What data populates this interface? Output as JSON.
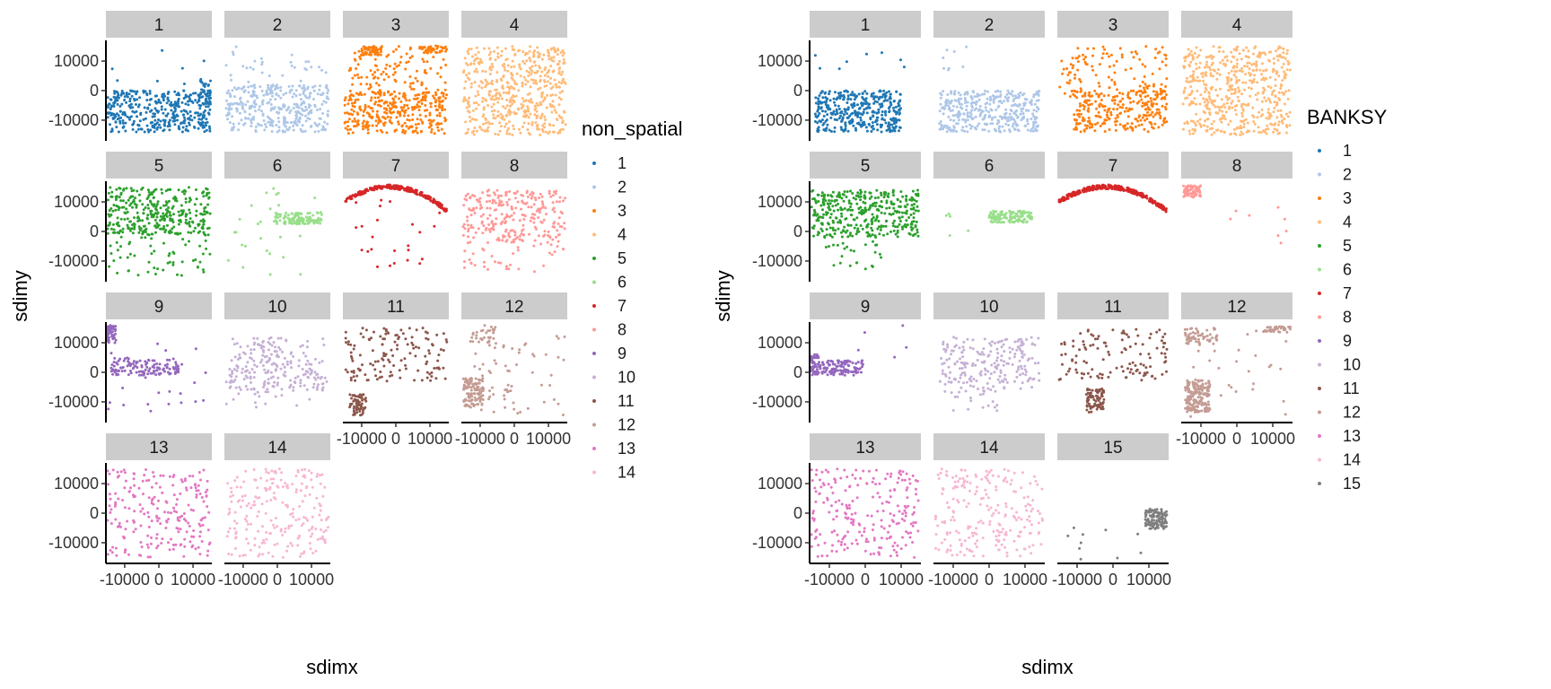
{
  "chart_data": [
    {
      "type": "scatter",
      "facet_by": "non_spatial",
      "xlabel": "sdimx",
      "ylabel": "sdimy",
      "xlim": [
        -15500,
        15500
      ],
      "ylim": [
        -17000,
        17000
      ],
      "x_ticks": [
        -10000,
        0,
        10000
      ],
      "x_tick_labels": [
        "-10000",
        "0",
        "10000"
      ],
      "y_ticks": [
        -10000,
        0,
        10000
      ],
      "y_tick_labels": [
        "-10000",
        "0",
        "10000"
      ],
      "grid": false,
      "legend": {
        "title": "non_spatial",
        "position": "right",
        "entries": [
          "1",
          "2",
          "3",
          "4",
          "5",
          "6",
          "7",
          "8",
          "9",
          "10",
          "11",
          "12",
          "13",
          "14"
        ]
      },
      "panels": [
        {
          "label": "1",
          "color": "#1f77b4",
          "clusters": [
            {
              "cx": 0,
              "cy": -7000,
              "sx": 15000,
              "sy": 7000,
              "n": 380,
              "kind": "uniform"
            },
            {
              "cx": 13500,
              "cy": -1000,
              "sx": 2000,
              "sy": 5000,
              "n": 40,
              "kind": "uniform"
            },
            {
              "cx": 0,
              "cy": 4000,
              "sx": 14000,
              "sy": 10000,
              "n": 12,
              "kind": "uniform"
            }
          ]
        },
        {
          "label": "2",
          "color": "#aec7e8",
          "clusters": [
            {
              "cx": 0,
              "cy": -6000,
              "sx": 15000,
              "sy": 8000,
              "n": 340,
              "kind": "uniform"
            },
            {
              "cx": 0,
              "cy": 7000,
              "sx": 15000,
              "sy": 8000,
              "n": 40,
              "kind": "uniform"
            }
          ]
        },
        {
          "label": "3",
          "color": "#ff7f0e",
          "clusters": [
            {
              "cx": 0,
              "cy": -7500,
              "sx": 15000,
              "sy": 7000,
              "n": 300,
              "kind": "uniform"
            },
            {
              "cx": 0,
              "cy": 4000,
              "sx": 15000,
              "sy": 11000,
              "n": 160,
              "kind": "uniform"
            },
            {
              "cx": -7000,
              "cy": 13500,
              "sx": 3000,
              "sy": 1500,
              "n": 50,
              "kind": "uniform"
            },
            {
              "cx": 11000,
              "cy": 14000,
              "sx": 4000,
              "sy": 1200,
              "n": 40,
              "kind": "uniform"
            }
          ]
        },
        {
          "label": "4",
          "color": "#ffbb78",
          "clusters": [
            {
              "cx": 0,
              "cy": 0,
              "sx": 15000,
              "sy": 15000,
              "n": 520,
              "kind": "uniform"
            }
          ]
        },
        {
          "label": "5",
          "color": "#2ca02c",
          "clusters": [
            {
              "cx": 0,
              "cy": 7000,
              "sx": 15000,
              "sy": 8000,
              "n": 320,
              "kind": "uniform"
            },
            {
              "cx": 0,
              "cy": -5000,
              "sx": 15000,
              "sy": 10000,
              "n": 80,
              "kind": "uniform"
            }
          ]
        },
        {
          "label": "6",
          "color": "#98df8a",
          "clusters": [
            {
              "cx": 6000,
              "cy": 4500,
              "sx": 7000,
              "sy": 2000,
              "n": 110,
              "kind": "uniform"
            },
            {
              "cx": 0,
              "cy": 0,
              "sx": 15000,
              "sy": 15000,
              "n": 30,
              "kind": "uniform"
            }
          ]
        },
        {
          "label": "7",
          "color": "#d62728",
          "clusters": [
            {
              "cx": 0,
              "cy": 0,
              "sx": 0,
              "sy": 0,
              "n": 240,
              "kind": "arc"
            },
            {
              "cx": 0,
              "cy": -1000,
              "sx": 13000,
              "sy": 12000,
              "n": 25,
              "kind": "uniform"
            }
          ]
        },
        {
          "label": "8",
          "color": "#ff9896",
          "clusters": [
            {
              "cx": 0,
              "cy": 5000,
              "sx": 15000,
              "sy": 9000,
              "n": 260,
              "kind": "uniform"
            },
            {
              "cx": 0,
              "cy": -8000,
              "sx": 15000,
              "sy": 6000,
              "n": 40,
              "kind": "uniform"
            }
          ]
        },
        {
          "label": "9",
          "color": "#9467bd",
          "clusters": [
            {
              "cx": -4000,
              "cy": 2000,
              "sx": 10000,
              "sy": 3000,
              "n": 120,
              "kind": "uniform"
            },
            {
              "cx": -14000,
              "cy": 13000,
              "sx": 1500,
              "sy": 3000,
              "n": 60,
              "kind": "uniform"
            },
            {
              "cx": 0,
              "cy": -2000,
              "sx": 15000,
              "sy": 12000,
              "n": 25,
              "kind": "uniform"
            }
          ]
        },
        {
          "label": "10",
          "color": "#c5b0d5",
          "clusters": [
            {
              "cx": 0,
              "cy": 3000,
              "sx": 14000,
              "sy": 9000,
              "n": 200,
              "kind": "uniform"
            },
            {
              "cx": 0,
              "cy": -6000,
              "sx": 15000,
              "sy": 6000,
              "n": 40,
              "kind": "uniform"
            }
          ]
        },
        {
          "label": "11",
          "color": "#8c564b",
          "clusters": [
            {
              "cx": 0,
              "cy": 6000,
              "sx": 15000,
              "sy": 9000,
              "n": 140,
              "kind": "uniform"
            },
            {
              "cx": -11000,
              "cy": -11000,
              "sx": 2500,
              "sy": 3500,
              "n": 70,
              "kind": "uniform"
            }
          ]
        },
        {
          "label": "12",
          "color": "#c49c94",
          "clusters": [
            {
              "cx": -12000,
              "cy": -7000,
              "sx": 3000,
              "sy": 5000,
              "n": 110,
              "kind": "uniform"
            },
            {
              "cx": 0,
              "cy": -1000,
              "sx": 15000,
              "sy": 14000,
              "n": 70,
              "kind": "uniform"
            },
            {
              "cx": -9000,
              "cy": 13000,
              "sx": 4000,
              "sy": 3000,
              "n": 30,
              "kind": "uniform"
            }
          ]
        },
        {
          "label": "13",
          "color": "#e377c2",
          "clusters": [
            {
              "cx": 0,
              "cy": 0,
              "sx": 15000,
              "sy": 15000,
              "n": 220,
              "kind": "uniform"
            }
          ]
        },
        {
          "label": "14",
          "color": "#f7b6d2",
          "clusters": [
            {
              "cx": 0,
              "cy": 0,
              "sx": 15000,
              "sy": 15000,
              "n": 220,
              "kind": "uniform"
            }
          ]
        }
      ]
    },
    {
      "type": "scatter",
      "facet_by": "BANKSY",
      "xlabel": "sdimx",
      "ylabel": "sdimy",
      "xlim": [
        -15500,
        15500
      ],
      "ylim": [
        -17000,
        17000
      ],
      "x_ticks": [
        -10000,
        0,
        10000
      ],
      "x_tick_labels": [
        "-10000",
        "0",
        "10000"
      ],
      "y_ticks": [
        -10000,
        0,
        10000
      ],
      "y_tick_labels": [
        "-10000",
        "0",
        "10000"
      ],
      "grid": false,
      "legend": {
        "title": "BANKSY",
        "position": "right",
        "entries": [
          "1",
          "2",
          "3",
          "4",
          "5",
          "6",
          "7",
          "8",
          "9",
          "10",
          "11",
          "12",
          "13",
          "14",
          "15"
        ]
      },
      "panels": [
        {
          "label": "1",
          "color": "#1f77b4",
          "clusters": [
            {
              "cx": -2000,
              "cy": -7000,
              "sx": 12000,
              "sy": 7000,
              "n": 380,
              "kind": "uniform"
            },
            {
              "cx": 0,
              "cy": 10000,
              "sx": 14000,
              "sy": 5000,
              "n": 8,
              "kind": "uniform"
            }
          ]
        },
        {
          "label": "2",
          "color": "#aec7e8",
          "clusters": [
            {
              "cx": 0,
              "cy": -7000,
              "sx": 14000,
              "sy": 7000,
              "n": 380,
              "kind": "uniform"
            },
            {
              "cx": -10000,
              "cy": 10000,
              "sx": 4000,
              "sy": 5000,
              "n": 8,
              "kind": "uniform"
            }
          ]
        },
        {
          "label": "3",
          "color": "#ff7f0e",
          "clusters": [
            {
              "cx": 2000,
              "cy": -7000,
              "sx": 13000,
              "sy": 7000,
              "n": 260,
              "kind": "uniform"
            },
            {
              "cx": 0,
              "cy": 6000,
              "sx": 15000,
              "sy": 9000,
              "n": 120,
              "kind": "uniform"
            }
          ]
        },
        {
          "label": "4",
          "color": "#ffbb78",
          "clusters": [
            {
              "cx": 0,
              "cy": 0,
              "sx": 15000,
              "sy": 15000,
              "n": 520,
              "kind": "uniform"
            }
          ]
        },
        {
          "label": "5",
          "color": "#2ca02c",
          "clusters": [
            {
              "cx": 0,
              "cy": 6000,
              "sx": 15000,
              "sy": 8000,
              "n": 380,
              "kind": "uniform"
            },
            {
              "cx": -3000,
              "cy": -8000,
              "sx": 10000,
              "sy": 5000,
              "n": 25,
              "kind": "uniform"
            }
          ]
        },
        {
          "label": "6",
          "color": "#98df8a",
          "clusters": [
            {
              "cx": 6000,
              "cy": 5000,
              "sx": 6000,
              "sy": 2000,
              "n": 120,
              "kind": "uniform"
            },
            {
              "cx": -8000,
              "cy": 6000,
              "sx": 6000,
              "sy": 8000,
              "n": 5,
              "kind": "uniform"
            }
          ]
        },
        {
          "label": "7",
          "color": "#d62728",
          "clusters": [
            {
              "cx": 0,
              "cy": 0,
              "sx": 0,
              "sy": 0,
              "n": 320,
              "kind": "arc"
            }
          ]
        },
        {
          "label": "8",
          "color": "#ff9896",
          "clusters": [
            {
              "cx": -12500,
              "cy": 13500,
              "sx": 2500,
              "sy": 2000,
              "n": 70,
              "kind": "uniform"
            },
            {
              "cx": 6000,
              "cy": 2000,
              "sx": 9000,
              "sy": 8000,
              "n": 8,
              "kind": "uniform"
            }
          ]
        },
        {
          "label": "9",
          "color": "#9467bd",
          "clusters": [
            {
              "cx": -8000,
              "cy": 1500,
              "sx": 7500,
              "sy": 2500,
              "n": 140,
              "kind": "uniform"
            },
            {
              "cx": -14000,
              "cy": 4000,
              "sx": 1000,
              "sy": 2000,
              "n": 20,
              "kind": "uniform"
            },
            {
              "cx": 5000,
              "cy": 8000,
              "sx": 10000,
              "sy": 8000,
              "n": 5,
              "kind": "uniform"
            }
          ]
        },
        {
          "label": "10",
          "color": "#c5b0d5",
          "clusters": [
            {
              "cx": 0,
              "cy": 3000,
              "sx": 14000,
              "sy": 9000,
              "n": 200,
              "kind": "uniform"
            },
            {
              "cx": -5000,
              "cy": -8000,
              "sx": 8000,
              "sy": 5000,
              "n": 30,
              "kind": "uniform"
            }
          ]
        },
        {
          "label": "11",
          "color": "#8c564b",
          "clusters": [
            {
              "cx": 0,
              "cy": 6000,
              "sx": 15000,
              "sy": 9000,
              "n": 120,
              "kind": "uniform"
            },
            {
              "cx": -5000,
              "cy": -9500,
              "sx": 2500,
              "sy": 4000,
              "n": 80,
              "kind": "uniform"
            }
          ]
        },
        {
          "label": "12",
          "color": "#c49c94",
          "clusters": [
            {
              "cx": -11000,
              "cy": -8000,
              "sx": 3500,
              "sy": 5500,
              "n": 180,
              "kind": "uniform"
            },
            {
              "cx": -10000,
              "cy": 12000,
              "sx": 4500,
              "sy": 3000,
              "n": 60,
              "kind": "uniform"
            },
            {
              "cx": 11000,
              "cy": 14500,
              "sx": 4000,
              "sy": 1000,
              "n": 40,
              "kind": "uniform"
            },
            {
              "cx": 0,
              "cy": 0,
              "sx": 15000,
              "sy": 15000,
              "n": 30,
              "kind": "uniform"
            }
          ]
        },
        {
          "label": "13",
          "color": "#e377c2",
          "clusters": [
            {
              "cx": 0,
              "cy": 0,
              "sx": 15000,
              "sy": 15000,
              "n": 220,
              "kind": "uniform"
            }
          ]
        },
        {
          "label": "14",
          "color": "#f7b6d2",
          "clusters": [
            {
              "cx": 0,
              "cy": 0,
              "sx": 15000,
              "sy": 15000,
              "n": 220,
              "kind": "uniform"
            }
          ]
        },
        {
          "label": "15",
          "color": "#7f7f7f",
          "clusters": [
            {
              "cx": 12000,
              "cy": -2000,
              "sx": 3000,
              "sy": 3500,
              "n": 110,
              "kind": "uniform"
            },
            {
              "cx": -2000,
              "cy": -8000,
              "sx": 12000,
              "sy": 8000,
              "n": 10,
              "kind": "uniform"
            }
          ]
        }
      ]
    }
  ]
}
